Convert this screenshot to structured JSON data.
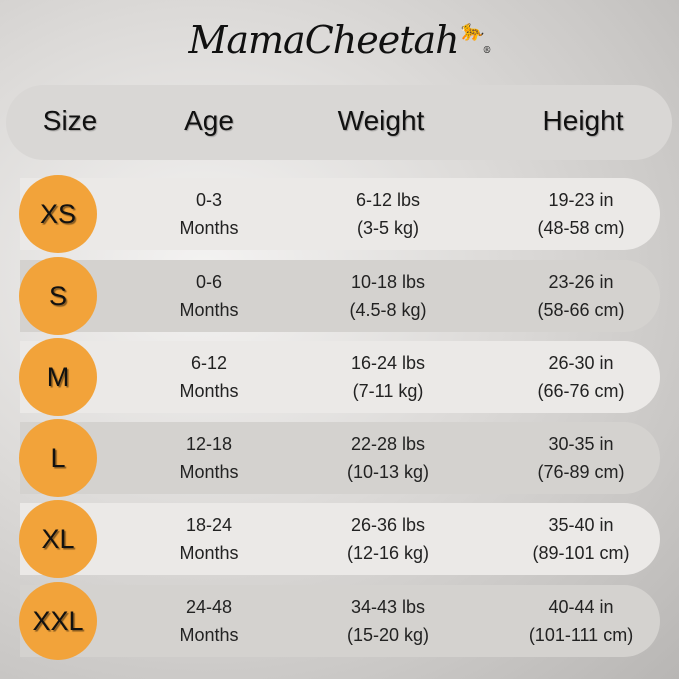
{
  "brand": {
    "logo_text": "MamaCheetah",
    "accent": "#f2a33a"
  },
  "header": {
    "size": "Size",
    "age": "Age",
    "weight": "Weight",
    "height": "Height"
  },
  "rows": [
    {
      "size": "XS",
      "age1": "0-3",
      "age2": "Months",
      "w1": "6-12 lbs",
      "w2": "(3-5 kg)",
      "h1": "19-23 in",
      "h2": "(48-58 cm)"
    },
    {
      "size": "S",
      "age1": "0-6",
      "age2": "Months",
      "w1": "10-18 lbs",
      "w2": "(4.5-8 kg)",
      "h1": "23-26 in",
      "h2": "(58-66 cm)"
    },
    {
      "size": "M",
      "age1": "6-12",
      "age2": "Months",
      "w1": "16-24 lbs",
      "w2": "(7-11 kg)",
      "h1": "26-30 in",
      "h2": "(66-76 cm)"
    },
    {
      "size": "L",
      "age1": "12-18",
      "age2": "Months",
      "w1": "22-28 lbs",
      "w2": "(10-13 kg)",
      "h1": "30-35 in",
      "h2": "(76-89 cm)"
    },
    {
      "size": "XL",
      "age1": "18-24",
      "age2": "Months",
      "w1": "26-36 lbs",
      "w2": "(12-16 kg)",
      "h1": "35-40 in",
      "h2": "(89-101 cm)"
    },
    {
      "size": "XXL",
      "age1": "24-48",
      "age2": "Months",
      "w1": "34-43 lbs",
      "w2": "(15-20 kg)",
      "h1": "40-44 in",
      "h2": "(101-111 cm)"
    }
  ]
}
